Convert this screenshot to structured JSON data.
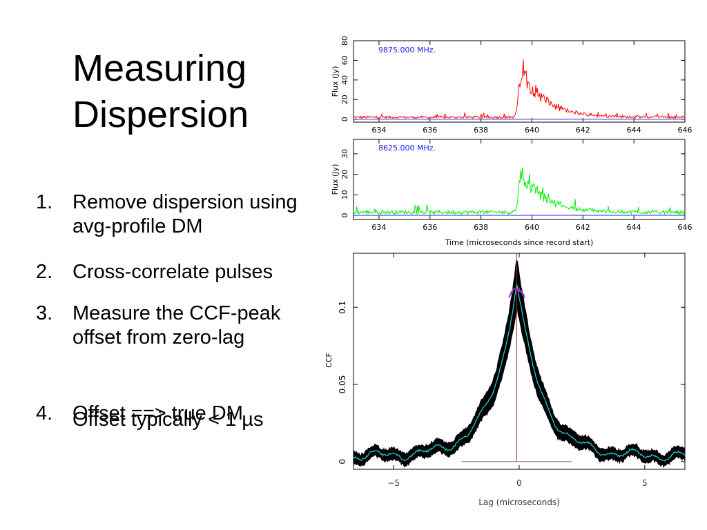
{
  "slide": {
    "title_lines": [
      "Measuring",
      "Dispersion"
    ],
    "steps": [
      {
        "num": "1.",
        "text": "Remove dispersion using avg-profile DM"
      },
      {
        "num": "2.",
        "text": "Cross-correlate pulses"
      },
      {
        "num": "3.",
        "text": "Measure the CCF-peak offset from zero-lag"
      },
      {
        "num": "4.",
        "text": "Offset ==> true DM"
      }
    ],
    "overlay_text": "Offset typically < 1 µs"
  },
  "chart_data": [
    {
      "type": "line",
      "annotation": "9875.000 MHz.",
      "ylabel": "Flux (Jy)",
      "xlabel": "",
      "xlim": [
        633,
        646
      ],
      "ylim": [
        -3,
        80
      ],
      "xticks": [
        634,
        636,
        638,
        640,
        642,
        644,
        646
      ],
      "yticks": [
        0,
        20,
        40,
        60,
        80
      ],
      "series": [
        {
          "color": "#ff0000",
          "peak_x": 639.6,
          "peak_y": 63,
          "baseline": 2
        }
      ]
    },
    {
      "type": "line",
      "annotation": "8625.000 MHz.",
      "ylabel": "Flux (Jy)",
      "xlabel": "Time (microseconds since record start)",
      "xlim": [
        633,
        646
      ],
      "ylim": [
        -2,
        37
      ],
      "xticks": [
        634,
        636,
        638,
        640,
        642,
        644,
        646
      ],
      "yticks": [
        0,
        10,
        20,
        30
      ],
      "series": [
        {
          "color": "#00ee00",
          "peak_x": 639.6,
          "peak_y": 25,
          "baseline": 1.5
        }
      ]
    },
    {
      "type": "line",
      "annotation": "",
      "ylabel": "CCF",
      "xlabel": "Lag (microseconds)",
      "xlim": [
        -6.6,
        6.6
      ],
      "ylim": [
        -0.005,
        0.135
      ],
      "xticks": [
        -5,
        0,
        5
      ],
      "xtick_labels": [
        "−5",
        "0",
        "5"
      ],
      "yticks": [
        0,
        0.05,
        0.1
      ],
      "ytick_labels": [
        "0",
        "0.05",
        "0.1"
      ],
      "series": [
        {
          "color": "#000000",
          "role": "ccf-band",
          "peak_x": -0.1,
          "peak_y": 0.13
        },
        {
          "color": "#22cccc",
          "role": "ccf-mean",
          "peak_x": -0.1,
          "peak_y": 0.118
        },
        {
          "color": "#9933cc",
          "role": "peak-fit",
          "peak_x": -0.1,
          "peak_y": 0.112
        }
      ],
      "markers": {
        "zero_lag_line_x": -0.1,
        "baseline_y": 0
      }
    }
  ]
}
